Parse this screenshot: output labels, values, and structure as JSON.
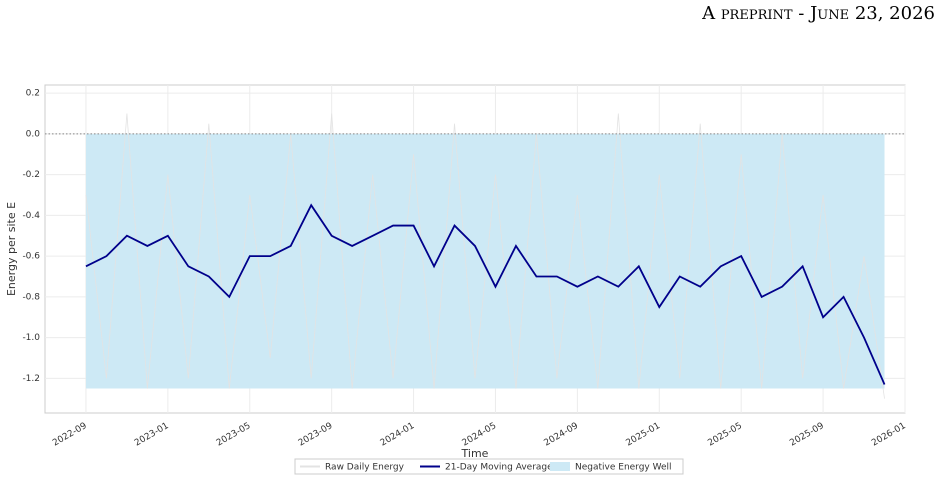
{
  "header": "A preprint - June 23, 2026",
  "chart_data": {
    "type": "line",
    "xlabel": "Time",
    "ylabel": "Energy per site E",
    "x": [
      "2022-09",
      "2022-10",
      "2022-11",
      "2022-12",
      "2023-01",
      "2023-02",
      "2023-03",
      "2023-04",
      "2023-05",
      "2023-06",
      "2023-07",
      "2023-08",
      "2023-09",
      "2023-10",
      "2023-11",
      "2023-12",
      "2024-01",
      "2024-02",
      "2024-03",
      "2024-04",
      "2024-05",
      "2024-06",
      "2024-07",
      "2024-08",
      "2024-09",
      "2024-10",
      "2024-11",
      "2024-12",
      "2025-01",
      "2025-02",
      "2025-03",
      "2025-04",
      "2025-05",
      "2025-06",
      "2025-07",
      "2025-08",
      "2025-09",
      "2025-10",
      "2025-11",
      "2025-12"
    ],
    "series": [
      {
        "name": "Negative Energy Well",
        "kind": "area",
        "color": "#cde9f5",
        "values": [
          -1.25,
          -1.25,
          -1.25,
          -1.25,
          -1.25,
          -1.25,
          -1.25,
          -1.25,
          -1.25,
          -1.25,
          -1.25,
          -1.25,
          -1.25,
          -1.25,
          -1.25,
          -1.25,
          -1.25,
          -1.25,
          -1.25,
          -1.25,
          -1.25,
          -1.25,
          -1.25,
          -1.25,
          -1.25,
          -1.25,
          -1.25,
          -1.25,
          -1.25,
          -1.25,
          -1.25,
          -1.25,
          -1.25,
          -1.25,
          -1.25,
          -1.25,
          -1.25,
          -1.25,
          -1.25,
          -1.25
        ]
      },
      {
        "name": "Raw Daily Energy",
        "kind": "line",
        "color": "#e3e3e3",
        "values": [
          -0.3,
          -1.2,
          0.1,
          -1.25,
          -0.2,
          -1.2,
          0.05,
          -1.25,
          -0.3,
          -1.1,
          0.0,
          -1.2,
          0.1,
          -1.25,
          -0.2,
          -1.2,
          -0.1,
          -1.25,
          0.05,
          -1.2,
          -0.2,
          -1.25,
          0.0,
          -1.2,
          -0.3,
          -1.25,
          0.1,
          -1.25,
          -0.2,
          -1.2,
          0.05,
          -1.25,
          -0.1,
          -1.25,
          0.0,
          -1.2,
          -0.3,
          -1.25,
          -0.6,
          -1.3
        ]
      },
      {
        "name": "21-Day Moving Average",
        "kind": "line",
        "color": "#00008b",
        "values": [
          -0.65,
          -0.6,
          -0.5,
          -0.55,
          -0.5,
          -0.65,
          -0.7,
          -0.8,
          -0.6,
          -0.6,
          -0.55,
          -0.35,
          -0.5,
          -0.55,
          -0.5,
          -0.45,
          -0.45,
          -0.65,
          -0.45,
          -0.55,
          -0.75,
          -0.55,
          -0.7,
          -0.7,
          -0.75,
          -0.7,
          -0.75,
          -0.65,
          -0.85,
          -0.7,
          -0.75,
          -0.65,
          -0.6,
          -0.8,
          -0.75,
          -0.65,
          -0.9,
          -0.8,
          -1.0,
          -1.23
        ]
      }
    ],
    "hline": 0,
    "xlim": [
      "2022-07",
      "2026-01"
    ],
    "xticks": [
      "2022-09",
      "2023-01",
      "2023-05",
      "2023-09",
      "2024-01",
      "2024-05",
      "2024-09",
      "2025-01",
      "2025-05",
      "2025-09",
      "2026-01"
    ],
    "ylim": [
      -1.37,
      0.24
    ],
    "yticks": [
      0.2,
      0.0,
      -0.2,
      -0.4,
      -0.6,
      -0.8,
      -1.0,
      -1.2
    ],
    "grid": true,
    "legend": "bottom"
  }
}
